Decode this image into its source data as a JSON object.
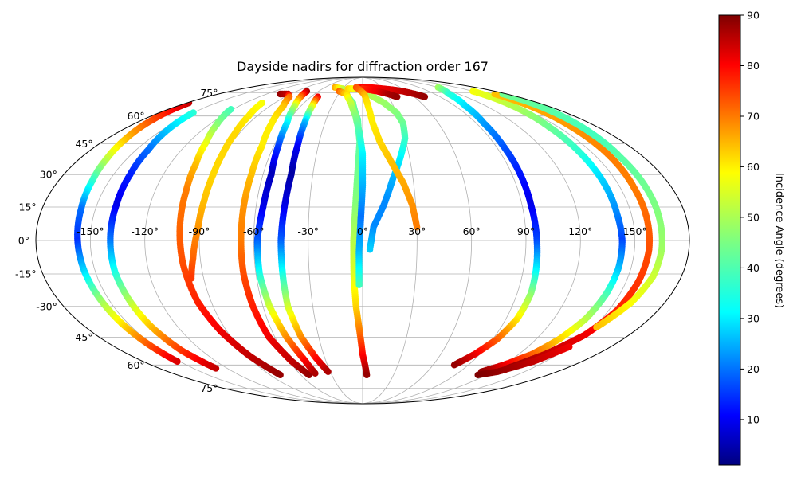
{
  "chart_data": {
    "type": "scatter",
    "projection": "mollweide",
    "title": "Dayside nadirs for diffraction order 167",
    "lon_ticks": [
      "-150°",
      "-120°",
      "-90°",
      "-60°",
      "-30°",
      "0°",
      "30°",
      "60°",
      "90°",
      "120°",
      "150°"
    ],
    "lon_tick_values": [
      -150,
      -120,
      -90,
      -60,
      -30,
      0,
      30,
      60,
      90,
      120,
      150
    ],
    "lat_ticks": [
      "-75°",
      "-60°",
      "-45°",
      "-30°",
      "-15°",
      "0°",
      "15°",
      "30°",
      "45°",
      "60°",
      "75°"
    ],
    "lat_tick_values": [
      -75,
      -60,
      -45,
      -30,
      -15,
      0,
      15,
      30,
      45,
      60,
      75
    ],
    "grid": true,
    "colorbar": {
      "label": "Incidence Angle (degrees)",
      "colormap": "jet",
      "vmin": 1,
      "vmax": 90,
      "ticks": [
        10,
        20,
        30,
        40,
        50,
        60,
        70,
        80,
        90
      ]
    },
    "series": [
      {
        "points": [
          [
            -178,
            68,
            84
          ],
          [
            -172,
            58,
            73
          ],
          [
            -167,
            48,
            63
          ],
          [
            -163,
            38,
            52
          ],
          [
            -160,
            27,
            39
          ],
          [
            -158,
            14,
            22
          ],
          [
            -157,
            0,
            16
          ],
          [
            -156,
            -14,
            31
          ],
          [
            -155,
            -26,
            46
          ],
          [
            -154,
            -38,
            58
          ],
          [
            -153,
            -48,
            70
          ],
          [
            -152,
            -58,
            82
          ]
        ]
      },
      {
        "points": [
          [
            -150,
            62,
            38
          ],
          [
            -146,
            52,
            30
          ],
          [
            -142,
            42,
            22
          ],
          [
            -140,
            30,
            15
          ],
          [
            -139,
            16,
            10
          ],
          [
            -139,
            0,
            22
          ],
          [
            -139,
            -14,
            36
          ],
          [
            -138,
            -28,
            50
          ],
          [
            -137,
            -40,
            62
          ],
          [
            -135,
            -52,
            74
          ],
          [
            -130,
            -62,
            84
          ]
        ]
      },
      {
        "points": [
          [
            -122,
            64,
            40
          ],
          [
            -114,
            55,
            46
          ],
          [
            -108,
            46,
            54
          ],
          [
            -104,
            35,
            62
          ],
          [
            -102,
            22,
            68
          ],
          [
            -101,
            6,
            70
          ],
          [
            -100,
            -10,
            72
          ],
          [
            -98,
            -28,
            76
          ],
          [
            -94,
            -42,
            80
          ],
          [
            -88,
            -55,
            84
          ],
          [
            -80,
            -66,
            88
          ]
        ]
      },
      {
        "points": [
          [
            -103,
            68,
            56
          ],
          [
            -97,
            60,
            58
          ],
          [
            -93,
            50,
            60
          ],
          [
            -91,
            40,
            60
          ],
          [
            -90,
            30,
            60
          ],
          [
            -90,
            18,
            62
          ],
          [
            -91,
            5,
            66
          ],
          [
            -94,
            -8,
            70
          ],
          [
            -97,
            -17,
            74
          ]
        ]
      },
      {
        "points": [
          [
            -103,
            74,
            88
          ],
          [
            -93,
            74,
            84
          ],
          [
            -85,
            72,
            70
          ],
          [
            -77,
            66,
            62
          ],
          [
            -72,
            56,
            58
          ],
          [
            -68,
            44,
            58
          ],
          [
            -67,
            30,
            62
          ],
          [
            -67,
            15,
            66
          ],
          [
            -67,
            0,
            68
          ],
          [
            -67,
            -15,
            72
          ],
          [
            -66,
            -30,
            76
          ],
          [
            -64,
            -45,
            80
          ],
          [
            -58,
            -58,
            84
          ],
          [
            -52,
            -66,
            88
          ]
        ]
      },
      {
        "points": [
          [
            -76,
            76,
            86
          ],
          [
            -72,
            72,
            70
          ],
          [
            -66,
            66,
            52
          ],
          [
            -60,
            56,
            34
          ],
          [
            -57,
            44,
            18
          ],
          [
            -55,
            30,
            6
          ],
          [
            -56,
            15,
            10
          ],
          [
            -58,
            0,
            20
          ],
          [
            -58,
            -15,
            36
          ],
          [
            -56,
            -30,
            52
          ],
          [
            -52,
            -45,
            66
          ],
          [
            -47,
            -57,
            78
          ],
          [
            -45,
            -65,
            86
          ]
        ]
      },
      {
        "points": [
          [
            -52,
            72,
            80
          ],
          [
            -49,
            66,
            56
          ],
          [
            -46,
            56,
            28
          ],
          [
            -44,
            44,
            12
          ],
          [
            -43,
            30,
            4
          ],
          [
            -44,
            15,
            10
          ],
          [
            -45,
            0,
            20
          ],
          [
            -45,
            -15,
            36
          ],
          [
            -45,
            -30,
            52
          ],
          [
            -42,
            -45,
            66
          ],
          [
            -37,
            -56,
            78
          ],
          [
            -32,
            -64,
            86
          ]
        ]
      },
      {
        "points": [
          [
            -44,
            79,
            64
          ],
          [
            -30,
            78,
            52
          ],
          [
            -20,
            74,
            46
          ],
          [
            -10,
            68,
            44
          ],
          [
            -4,
            58,
            42
          ],
          [
            -2,
            46,
            42
          ],
          [
            -3,
            32,
            44
          ],
          [
            -4,
            16,
            46
          ],
          [
            -5,
            0,
            50
          ],
          [
            -5,
            -16,
            54
          ],
          [
            -4,
            -30,
            60
          ],
          [
            -2,
            -42,
            68
          ],
          [
            0,
            -54,
            78
          ],
          [
            4,
            -66,
            88
          ]
        ]
      },
      {
        "points": [
          [
            -32,
            76,
            70
          ],
          [
            -20,
            74,
            60
          ],
          [
            -12,
            68,
            52
          ],
          [
            -6,
            60,
            46
          ],
          [
            -2,
            50,
            40
          ],
          [
            0,
            40,
            34
          ],
          [
            0,
            25,
            28
          ],
          [
            -1,
            10,
            22
          ],
          [
            -2,
            -5,
            28
          ],
          [
            -2,
            -20,
            40
          ]
        ]
      },
      {
        "points": [
          [
            -22,
            78,
            60
          ],
          [
            -10,
            78,
            55
          ],
          [
            0,
            76,
            52
          ],
          [
            10,
            73,
            50
          ],
          [
            22,
            68,
            48
          ],
          [
            30,
            62,
            46
          ],
          [
            32,
            56,
            44
          ],
          [
            30,
            48,
            40
          ],
          [
            24,
            38,
            34
          ],
          [
            18,
            28,
            28
          ],
          [
            12,
            16,
            24
          ],
          [
            6,
            6,
            24
          ],
          [
            4,
            -4,
            30
          ]
        ]
      },
      {
        "points": [
          [
            -10,
            79,
            80
          ],
          [
            10,
            79,
            78
          ],
          [
            30,
            78,
            80
          ],
          [
            45,
            77,
            82
          ],
          [
            55,
            76,
            84
          ],
          [
            65,
            74,
            86
          ],
          [
            72,
            72,
            88
          ]
        ]
      },
      {
        "points": [
          [
            0,
            78,
            75
          ],
          [
            20,
            76,
            80
          ],
          [
            32,
            74,
            86
          ],
          [
            40,
            72,
            88
          ]
        ]
      },
      {
        "points": [
          [
            -10,
            79,
            72
          ],
          [
            -4,
            77,
            70
          ],
          [
            2,
            74,
            64
          ],
          [
            4,
            70,
            60
          ],
          [
            6,
            64,
            58
          ],
          [
            8,
            56,
            58
          ],
          [
            12,
            46,
            60
          ],
          [
            18,
            36,
            62
          ],
          [
            24,
            26,
            64
          ],
          [
            28,
            16,
            66
          ],
          [
            30,
            6,
            68
          ]
        ]
      },
      {
        "points": [
          [
            120,
            79,
            48
          ],
          [
            108,
            74,
            38
          ],
          [
            100,
            66,
            32
          ],
          [
            96,
            56,
            26
          ],
          [
            95,
            44,
            20
          ],
          [
            95,
            30,
            14
          ],
          [
            95,
            16,
            10
          ],
          [
            96,
            0,
            18
          ],
          [
            97,
            -12,
            32
          ],
          [
            98,
            -24,
            46
          ],
          [
            97,
            -36,
            58
          ],
          [
            93,
            -46,
            70
          ],
          [
            86,
            -54,
            80
          ],
          [
            78,
            -60,
            88
          ]
        ]
      },
      {
        "points": [
          [
            150,
            76,
            56
          ],
          [
            146,
            66,
            50
          ],
          [
            143,
            54,
            44
          ],
          [
            142,
            40,
            38
          ],
          [
            142,
            26,
            30
          ],
          [
            142,
            12,
            24
          ],
          [
            143,
            0,
            18
          ],
          [
            143,
            -12,
            28
          ],
          [
            142,
            -24,
            40
          ],
          [
            140,
            -36,
            50
          ],
          [
            136,
            -46,
            60
          ],
          [
            130,
            -54,
            70
          ],
          [
            120,
            -60,
            80
          ],
          [
            110,
            -64,
            88
          ]
        ]
      },
      {
        "points": [
          [
            165,
            74,
            62
          ],
          [
            162,
            64,
            64
          ],
          [
            160,
            52,
            66
          ],
          [
            159,
            38,
            68
          ],
          [
            158,
            24,
            68
          ],
          [
            158,
            10,
            70
          ],
          [
            158,
            -4,
            72
          ],
          [
            157,
            -18,
            74
          ],
          [
            155,
            -32,
            76
          ],
          [
            150,
            -44,
            80
          ],
          [
            140,
            -54,
            84
          ],
          [
            128,
            -62,
            88
          ]
        ]
      },
      {
        "points": [
          [
            175,
            74,
            44
          ],
          [
            170,
            62,
            42
          ],
          [
            167,
            50,
            40
          ],
          [
            165,
            38,
            42
          ],
          [
            165,
            24,
            44
          ],
          [
            165,
            10,
            46
          ],
          [
            165,
            -4,
            48
          ],
          [
            164,
            -16,
            52
          ],
          [
            160,
            -28,
            56
          ],
          [
            152,
            -40,
            62
          ]
        ]
      },
      {
        "points": [
          [
            150,
            -50,
            80
          ],
          [
            140,
            -58,
            84
          ],
          [
            125,
            -64,
            88
          ],
          [
            112,
            -66,
            90
          ]
        ]
      }
    ]
  }
}
